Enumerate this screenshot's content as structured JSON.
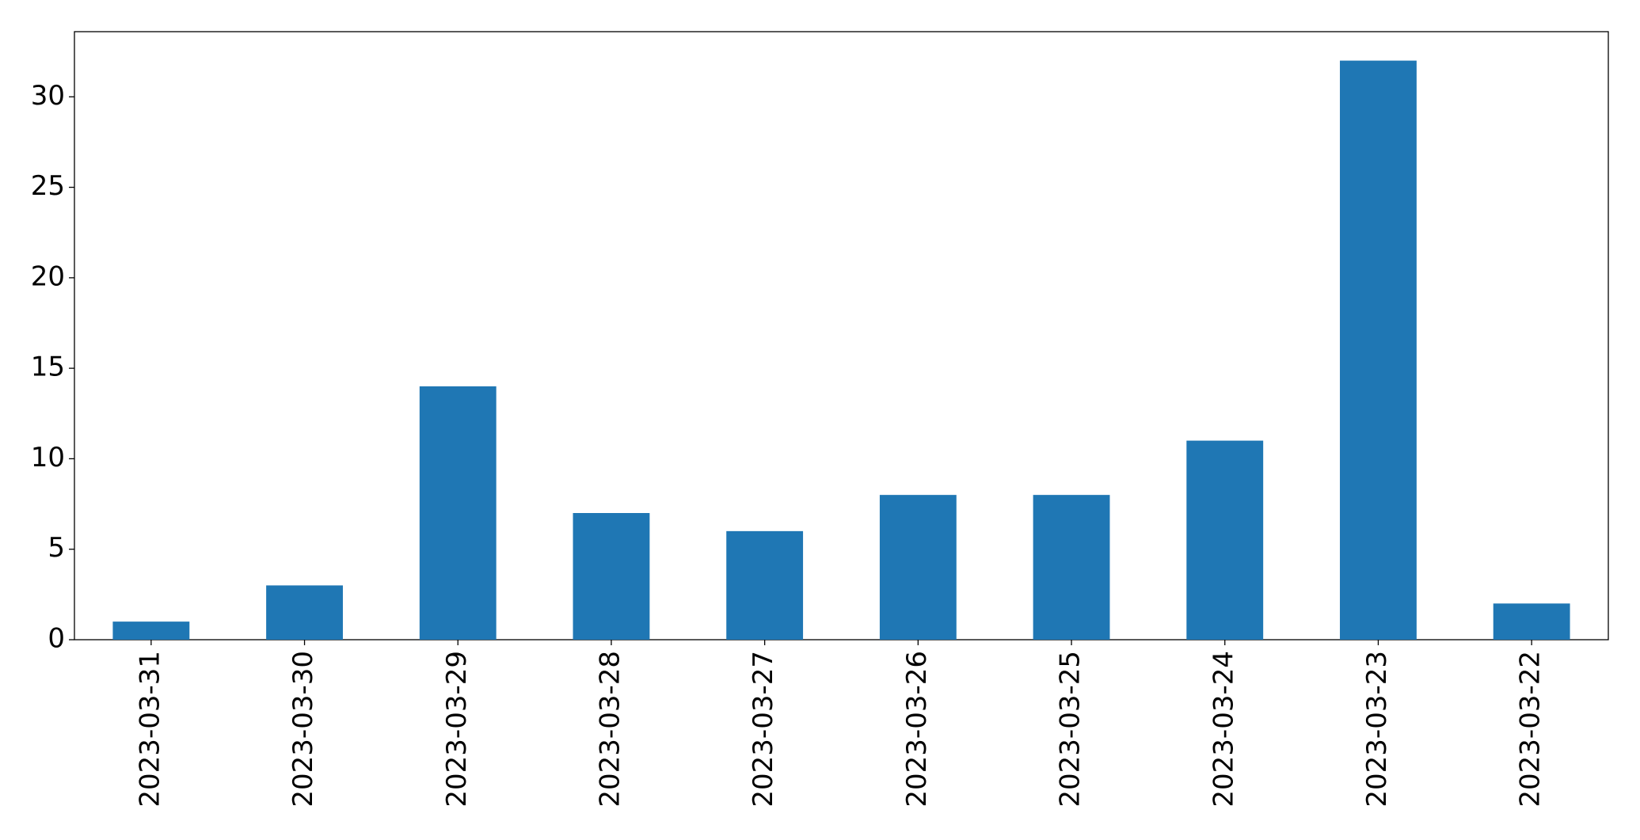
{
  "chart_data": {
    "type": "bar",
    "categories": [
      "2023-03-31",
      "2023-03-30",
      "2023-03-29",
      "2023-03-28",
      "2023-03-27",
      "2023-03-26",
      "2023-03-25",
      "2023-03-24",
      "2023-03-23",
      "2023-03-22"
    ],
    "values": [
      1,
      3,
      14,
      7,
      6,
      8,
      8,
      11,
      32,
      2
    ],
    "color": "#1f77b4",
    "ylim": [
      0,
      33.6
    ],
    "yticks": [
      0,
      5,
      10,
      15,
      20,
      25,
      30
    ],
    "grid": false
  }
}
